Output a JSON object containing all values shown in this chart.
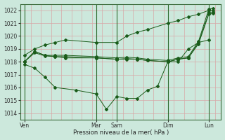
{
  "xlabel": "Pression niveau de la mer( hPa )",
  "ylim": [
    1013.5,
    1022.5
  ],
  "yticks": [
    1014,
    1015,
    1016,
    1017,
    1018,
    1019,
    1020,
    1021,
    1022
  ],
  "bg_color": "#cce8dc",
  "grid_color": "#d8a8a8",
  "line_color": "#1a5c1a",
  "xtick_day_labels": [
    "Ven",
    "Mar",
    "Sam",
    "Dim",
    "Lun"
  ],
  "xtick_day_positions": [
    0.0,
    3.5,
    4.5,
    7.0,
    9.0
  ],
  "vline_positions": [
    0.0,
    3.5,
    4.5,
    7.0,
    9.0
  ],
  "xlim": [
    -0.2,
    9.6
  ],
  "line1_x": [
    0.0,
    0.5,
    1.0,
    1.5,
    2.0,
    3.5,
    4.5,
    5.0,
    5.5,
    6.0,
    7.0,
    7.5,
    8.0,
    8.5,
    9.0,
    9.2
  ],
  "line1_y": [
    1018.5,
    1019.0,
    1019.3,
    1019.5,
    1019.7,
    1019.5,
    1019.5,
    1020.0,
    1020.3,
    1020.5,
    1021.0,
    1021.2,
    1021.5,
    1021.7,
    1022.0,
    1022.0
  ],
  "line2_x": [
    0.0,
    0.5,
    1.0,
    1.5,
    2.0,
    3.5,
    4.5,
    5.0,
    5.5,
    6.0,
    7.0,
    7.5,
    8.0,
    8.5,
    9.0,
    9.2
  ],
  "line2_y": [
    1018.0,
    1018.8,
    1018.5,
    1018.5,
    1018.5,
    1018.4,
    1018.3,
    1018.35,
    1018.3,
    1018.2,
    1018.1,
    1018.3,
    1018.4,
    1019.6,
    1022.1,
    1022.15
  ],
  "line3_x": [
    0.0,
    0.5,
    1.0,
    1.5,
    2.0,
    3.5,
    4.5,
    5.0,
    5.5,
    6.0,
    7.0,
    7.5,
    8.0,
    8.5,
    9.0,
    9.2
  ],
  "line3_y": [
    1018.0,
    1018.8,
    1018.5,
    1018.4,
    1018.4,
    1018.3,
    1018.2,
    1018.25,
    1018.2,
    1018.1,
    1018.0,
    1018.2,
    1018.3,
    1019.5,
    1021.8,
    1021.85
  ],
  "line4_x": [
    0.0,
    0.5,
    1.0,
    1.5,
    2.0,
    3.5,
    4.5,
    5.0,
    5.5,
    6.0,
    7.0,
    7.5,
    8.0,
    8.5,
    9.0,
    9.2
  ],
  "line4_y": [
    1018.0,
    1018.7,
    1018.45,
    1018.4,
    1018.3,
    1018.3,
    1018.2,
    1018.2,
    1018.2,
    1018.1,
    1018.0,
    1018.2,
    1018.3,
    1019.4,
    1021.7,
    1021.75
  ],
  "line5_x": [
    0.0,
    0.5,
    1.0,
    1.5,
    2.5,
    3.5,
    4.0,
    4.5,
    5.0,
    5.5,
    6.0,
    6.5,
    7.0,
    7.5,
    8.0,
    8.5,
    9.0
  ],
  "line5_y": [
    1017.8,
    1017.5,
    1016.8,
    1016.0,
    1015.8,
    1015.5,
    1014.3,
    1015.3,
    1015.15,
    1015.15,
    1015.8,
    1016.1,
    1018.0,
    1018.0,
    1019.0,
    1019.5,
    1019.7
  ]
}
